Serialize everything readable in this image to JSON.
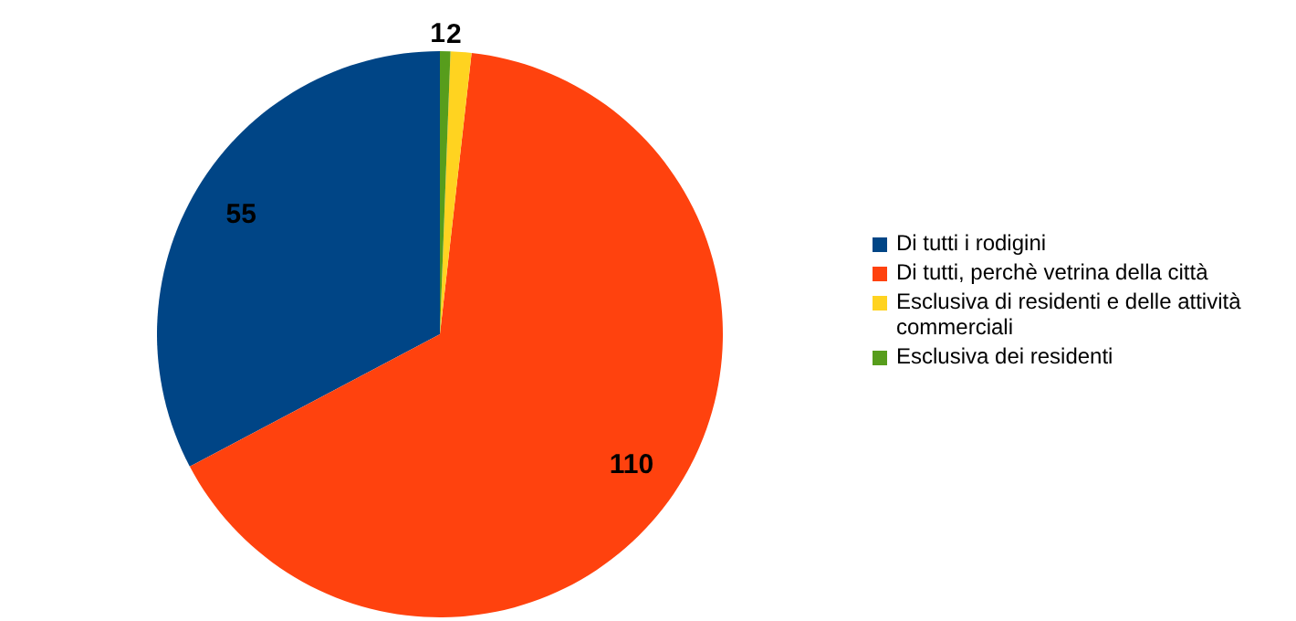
{
  "chart_data": {
    "type": "pie",
    "categories": [
      "Di tutti i rodigini",
      "Di tutti, perchè vetrina della città",
      "Esclusiva di residenti e delle attività commerciali",
      "Esclusiva dei residenti"
    ],
    "values": [
      55,
      110,
      2,
      1
    ],
    "colors": [
      "#004586",
      "#ff420e",
      "#ffd320",
      "#579d1c"
    ],
    "data_labels": true,
    "legend": "right"
  }
}
